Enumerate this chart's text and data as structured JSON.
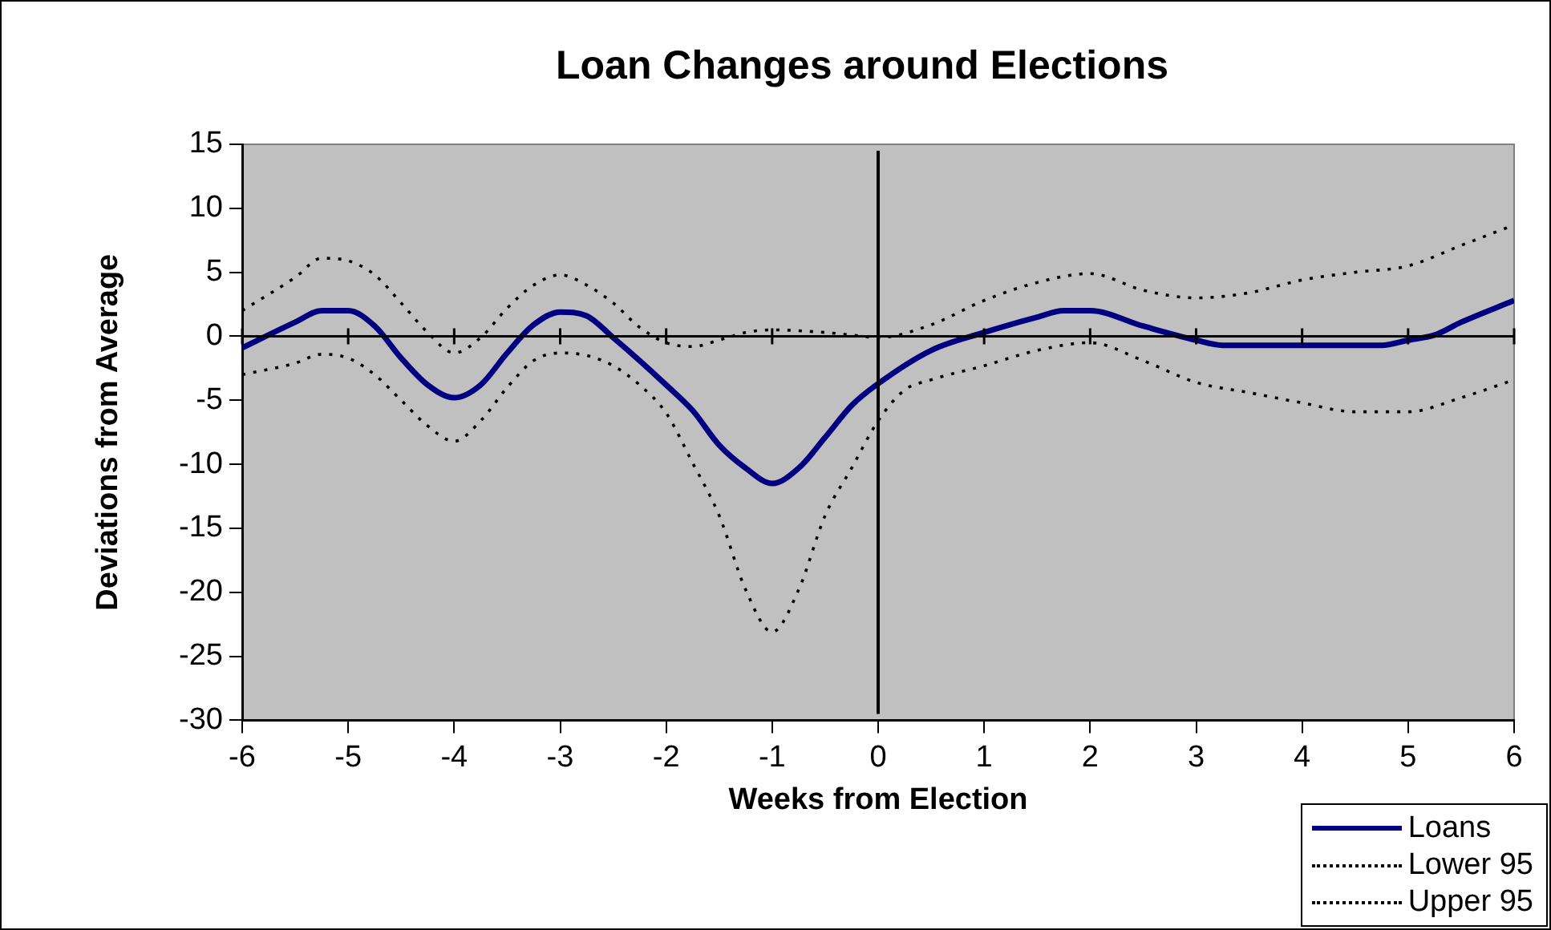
{
  "chart_data": {
    "type": "line",
    "title": "Loan Changes around Elections",
    "xlabel": "Weeks from Election",
    "ylabel": "Deviations from Average",
    "xlim": [
      -6,
      6
    ],
    "xticks": [
      -6,
      -5,
      -4,
      -3,
      -2,
      -1,
      0,
      1,
      2,
      3,
      4,
      5,
      6
    ],
    "ylim": [
      -30,
      15
    ],
    "yticks": [
      -30,
      -25,
      -20,
      -15,
      -10,
      -5,
      0,
      5,
      10,
      15
    ],
    "grid": false,
    "legend": "bottom right",
    "marker": "none",
    "ref_lines": [
      {
        "axis": "x",
        "value": 0,
        "label": null
      }
    ],
    "series": [
      {
        "name": "Loans",
        "color": "#000080",
        "line_style": "solid",
        "x": [
          -6,
          -5.5,
          -5.25,
          -5,
          -4.75,
          -4.5,
          -4.25,
          -4,
          -3.75,
          -3.5,
          -3.25,
          -3,
          -2.75,
          -2.5,
          -2.25,
          -2,
          -1.75,
          -1.5,
          -1.25,
          -1,
          -0.75,
          -0.5,
          -0.25,
          0,
          0.5,
          1,
          1.5,
          1.75,
          2,
          2.5,
          3,
          3.25,
          4,
          4.75,
          5,
          5.25,
          5.5,
          6
        ],
        "values": [
          -0.9,
          1.1,
          2.0,
          2.0,
          0.8,
          -1.7,
          -3.8,
          -4.8,
          -3.8,
          -1.3,
          0.9,
          1.9,
          1.6,
          -0.1,
          -1.9,
          -3.8,
          -5.8,
          -8.5,
          -10.3,
          -11.5,
          -10.3,
          -7.9,
          -5.4,
          -3.7,
          -1.1,
          0.3,
          1.5,
          2.0,
          2.0,
          0.8,
          -0.3,
          -0.7,
          -0.7,
          -0.7,
          -0.3,
          0.1,
          1.1,
          2.8
        ]
      },
      {
        "name": "Lower 95",
        "color": "#000000",
        "line_style": "dotted",
        "x": [
          -6,
          -5.5,
          -5.25,
          -5,
          -4.75,
          -4.5,
          -4.25,
          -4,
          -3.75,
          -3.5,
          -3.25,
          -3,
          -2.75,
          -2.5,
          -2.25,
          -2,
          -1.75,
          -1.5,
          -1.25,
          -1,
          -0.75,
          -0.5,
          -0.25,
          0,
          0.25,
          0.5,
          1,
          1.5,
          2,
          2.5,
          3,
          3.5,
          4,
          4.5,
          5,
          5.5,
          6
        ],
        "values": [
          -3.0,
          -2.1,
          -1.4,
          -1.7,
          -3.0,
          -5.0,
          -7.0,
          -8.2,
          -6.6,
          -4.0,
          -1.9,
          -1.3,
          -1.5,
          -2.3,
          -3.8,
          -6.0,
          -9.9,
          -14.0,
          -19.8,
          -23.1,
          -19.8,
          -14.0,
          -10.3,
          -6.6,
          -4.2,
          -3.4,
          -2.3,
          -1.1,
          -0.5,
          -1.9,
          -3.6,
          -4.4,
          -5.2,
          -5.9,
          -5.9,
          -4.8,
          -3.4
        ]
      },
      {
        "name": "Upper 95",
        "color": "#000000",
        "line_style": "dotted",
        "x": [
          -6,
          -5.5,
          -5.25,
          -5,
          -4.75,
          -4.5,
          -4.25,
          -4,
          -3.75,
          -3.5,
          -3.25,
          -3,
          -2.75,
          -2.5,
          -2.25,
          -2,
          -1.75,
          -1.5,
          -1.25,
          -1,
          -0.5,
          -0.25,
          0,
          0.5,
          1,
          1.5,
          2,
          2.5,
          3,
          3.5,
          4,
          4.5,
          5,
          5.5,
          6
        ],
        "values": [
          2.0,
          4.6,
          6.1,
          5.9,
          4.8,
          2.6,
          0.3,
          -1.3,
          -0.1,
          2.2,
          4.0,
          4.8,
          4.0,
          2.6,
          0.7,
          -0.5,
          -0.8,
          -0.3,
          0.3,
          0.5,
          0.3,
          0.1,
          -0.1,
          0.9,
          2.8,
          4.2,
          4.9,
          3.6,
          3.0,
          3.4,
          4.4,
          5.0,
          5.5,
          7.1,
          8.7
        ]
      }
    ]
  }
}
